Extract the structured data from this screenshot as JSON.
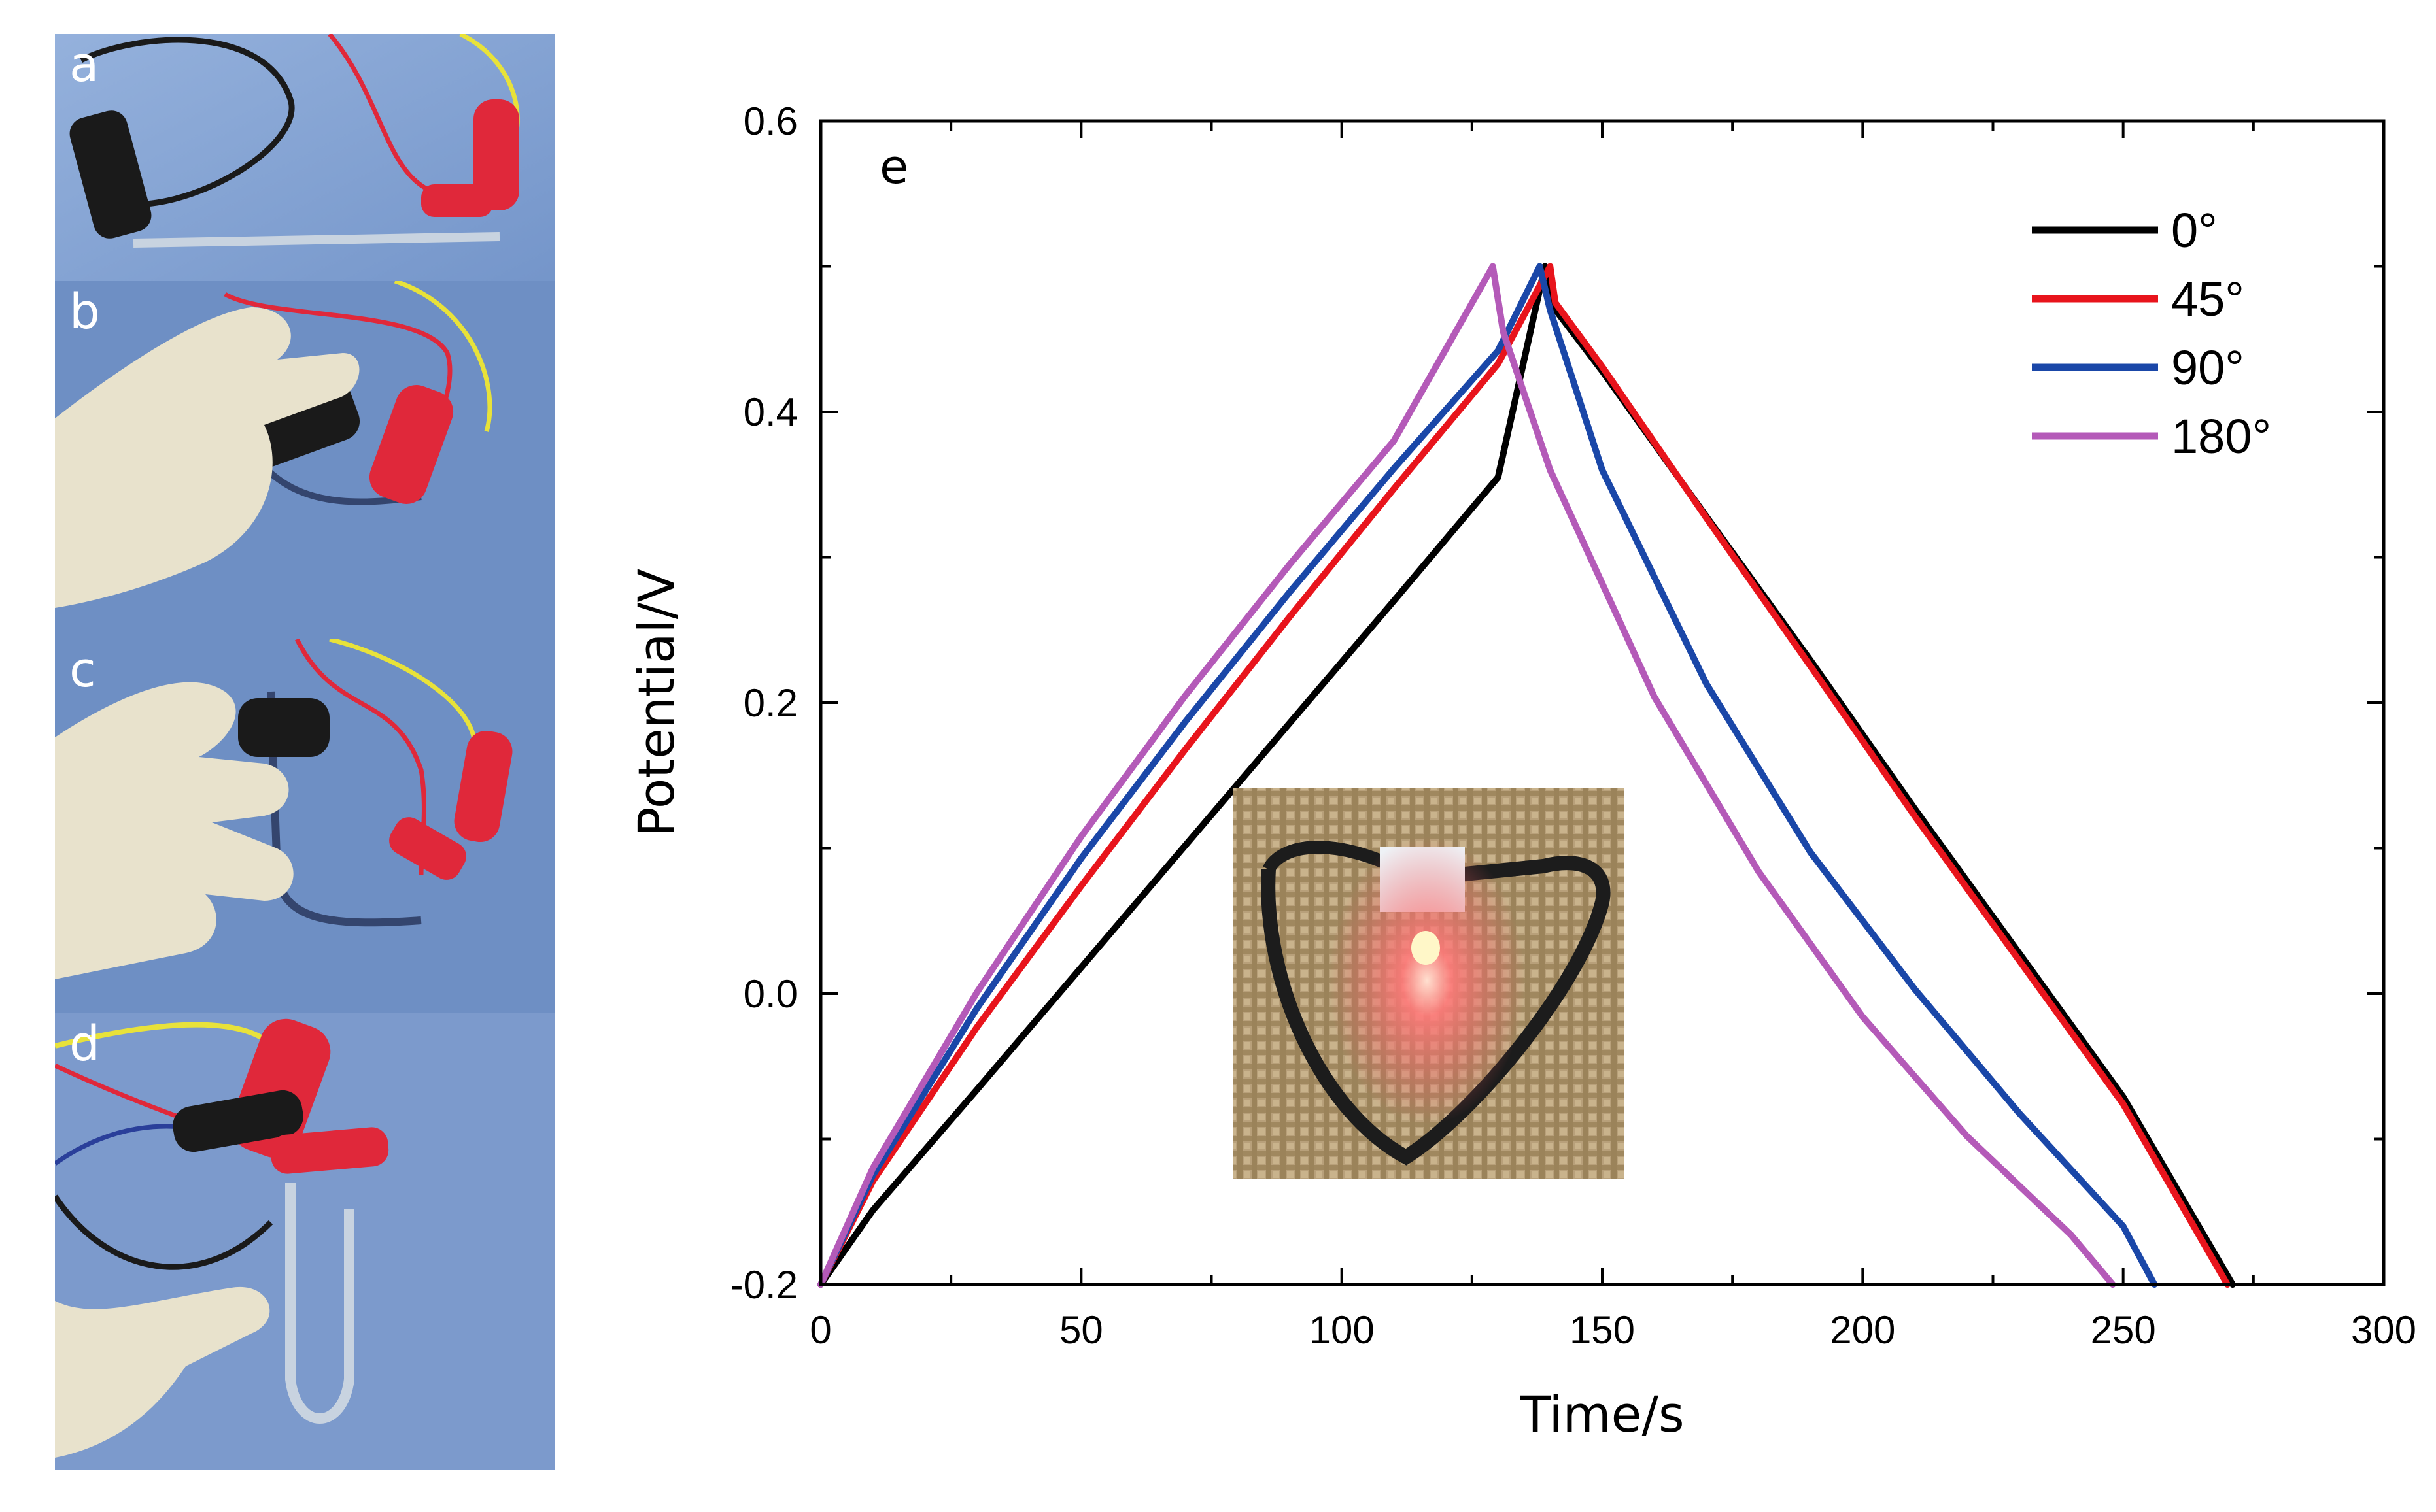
{
  "photos": [
    {
      "label": "a",
      "description_name": "photo-a-straight"
    },
    {
      "label": "b",
      "description_name": "photo-b-bent-45"
    },
    {
      "label": "c",
      "description_name": "photo-c-bent-90"
    },
    {
      "label": "d",
      "description_name": "photo-d-bent-180"
    }
  ],
  "colors": {
    "bg_blue": "#6e8fc4",
    "glove": "#e8e2cc",
    "clip_red": "#e0283a",
    "clip_black": "#1a1a1a",
    "wire_yellow": "#e8e23a",
    "wire_blue": "#2a3f9a"
  },
  "chart_data": {
    "type": "line",
    "panel_label": "e",
    "xlabel": "Time/s",
    "ylabel": "Potential/V",
    "xlim": [
      0,
      300
    ],
    "ylim": [
      -0.2,
      0.6
    ],
    "xticks": [
      0,
      50,
      100,
      150,
      200,
      250,
      300
    ],
    "xtick_labels": [
      "0",
      "50",
      "100",
      "150",
      "200",
      "250",
      "300"
    ],
    "yticks": [
      -0.2,
      0.0,
      0.2,
      0.4,
      0.6
    ],
    "ytick_labels": [
      "-0.2",
      "0.0",
      "0.2",
      "0.4",
      "0.6"
    ],
    "legend_position": "top-right",
    "series": [
      {
        "name": "0°",
        "color": "#000000",
        "x": [
          0,
          10,
          30,
          50,
          70,
          90,
          110,
          130,
          139,
          140,
          150,
          170,
          190,
          210,
          230,
          250,
          271
        ],
        "y": [
          -0.2,
          -0.149,
          -0.066,
          0.018,
          0.102,
          0.186,
          0.27,
          0.355,
          0.5,
          0.475,
          0.428,
          0.328,
          0.229,
          0.127,
          0.028,
          -0.071,
          -0.2
        ]
      },
      {
        "name": "45°",
        "color": "#e8141c",
        "x": [
          0,
          10,
          30,
          50,
          70,
          90,
          110,
          130,
          140,
          141,
          150,
          170,
          190,
          210,
          230,
          250,
          270
        ],
        "y": [
          -0.2,
          -0.129,
          -0.023,
          0.074,
          0.168,
          0.259,
          0.347,
          0.433,
          0.5,
          0.475,
          0.431,
          0.327,
          0.225,
          0.122,
          0.023,
          -0.076,
          -0.2
        ]
      },
      {
        "name": "90°",
        "color": "#1a47a8",
        "x": [
          0,
          10,
          30,
          50,
          70,
          90,
          110,
          130,
          138,
          140,
          150,
          170,
          190,
          210,
          230,
          250,
          256
        ],
        "y": [
          -0.2,
          -0.125,
          -0.01,
          0.093,
          0.187,
          0.276,
          0.361,
          0.442,
          0.5,
          0.47,
          0.36,
          0.213,
          0.097,
          0.003,
          -0.082,
          -0.16,
          -0.2
        ]
      },
      {
        "name": "180°",
        "color": "#b45ab8",
        "x": [
          0,
          10,
          30,
          50,
          70,
          90,
          110,
          129,
          131,
          140,
          160,
          180,
          200,
          220,
          240,
          248
        ],
        "y": [
          -0.2,
          -0.12,
          0.001,
          0.108,
          0.205,
          0.295,
          0.38,
          0.5,
          0.455,
          0.36,
          0.204,
          0.084,
          -0.016,
          -0.098,
          -0.166,
          -0.2
        ]
      }
    ],
    "inset": {
      "type": "photo",
      "name": "led-heart-photo"
    }
  }
}
